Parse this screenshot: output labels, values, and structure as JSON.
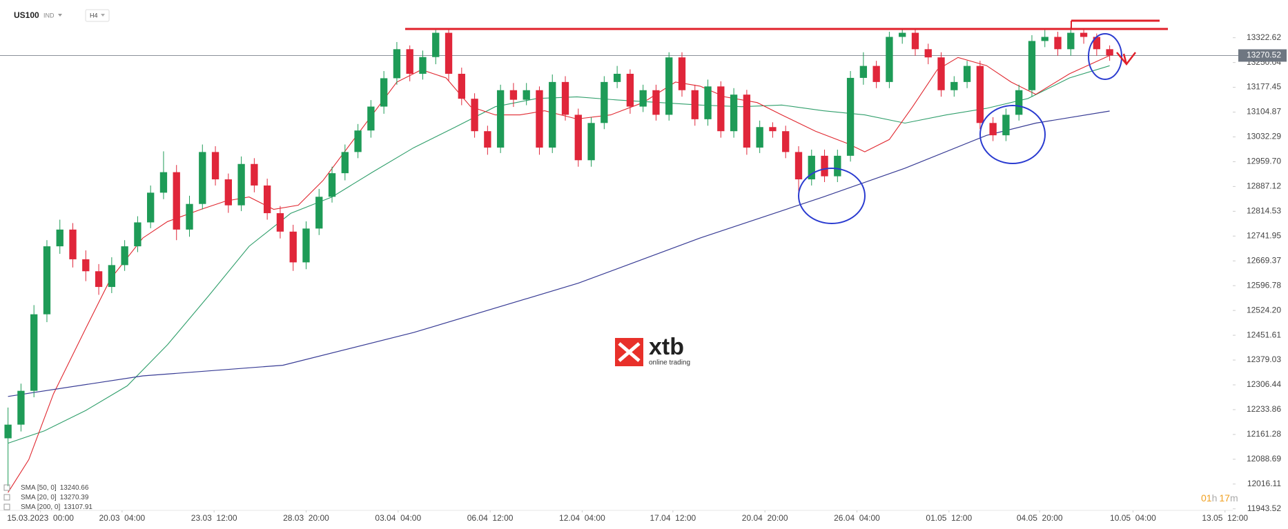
{
  "chart_data": {
    "type": "candlestick",
    "symbol": "US100",
    "market": "IND",
    "timeframe": "H4",
    "up_color": "#1e9b57",
    "down_color": "#e0263a",
    "ohlc": [
      [
        12150,
        12240,
        12010,
        12190
      ],
      [
        12190,
        12310,
        12170,
        12289
      ],
      [
        12289,
        12540,
        12270,
        12513
      ],
      [
        12513,
        12730,
        12490,
        12712
      ],
      [
        12712,
        12790,
        12690,
        12761
      ],
      [
        12761,
        12780,
        12650,
        12674
      ],
      [
        12674,
        12700,
        12610,
        12639
      ],
      [
        12639,
        12660,
        12570,
        12593
      ],
      [
        12593,
        12680,
        12575,
        12657
      ],
      [
        12657,
        12730,
        12640,
        12712
      ],
      [
        12712,
        12800,
        12695,
        12782
      ],
      [
        12782,
        12890,
        12765,
        12869
      ],
      [
        12869,
        12990,
        12850,
        12929
      ],
      [
        12929,
        12950,
        12730,
        12761
      ],
      [
        12761,
        12860,
        12740,
        12836
      ],
      [
        12836,
        13010,
        12820,
        12988
      ],
      [
        12988,
        13005,
        12890,
        12908
      ],
      [
        12908,
        12925,
        12810,
        12832
      ],
      [
        12832,
        12975,
        12815,
        12953
      ],
      [
        12953,
        12970,
        12870,
        12890
      ],
      [
        12890,
        12910,
        12790,
        12809
      ],
      [
        12809,
        12830,
        12735,
        12755
      ],
      [
        12755,
        12775,
        12640,
        12665
      ],
      [
        12665,
        12785,
        12645,
        12764
      ],
      [
        12764,
        12880,
        12745,
        12857
      ],
      [
        12857,
        12945,
        12840,
        12926
      ],
      [
        12926,
        13010,
        12905,
        12988
      ],
      [
        12988,
        13070,
        12970,
        13051
      ],
      [
        13051,
        13140,
        13030,
        13121
      ],
      [
        13121,
        13225,
        13100,
        13204
      ],
      [
        13204,
        13310,
        13185,
        13289
      ],
      [
        13289,
        13300,
        13195,
        13217
      ],
      [
        13217,
        13285,
        13200,
        13266
      ],
      [
        13266,
        13345,
        13245,
        13337
      ],
      [
        13337,
        13345,
        13195,
        13217
      ],
      [
        13217,
        13235,
        13125,
        13144
      ],
      [
        13144,
        13160,
        13030,
        13049
      ],
      [
        13049,
        13065,
        12980,
        13001
      ],
      [
        13001,
        13185,
        12985,
        13169
      ],
      [
        13169,
        13190,
        13120,
        13141
      ],
      [
        13141,
        13190,
        13125,
        13169
      ],
      [
        13169,
        13180,
        12980,
        13001
      ],
      [
        13001,
        13215,
        12985,
        13193
      ],
      [
        13193,
        13210,
        13080,
        13097
      ],
      [
        13097,
        13115,
        12945,
        12964
      ],
      [
        12964,
        13090,
        12945,
        13073
      ],
      [
        13073,
        13210,
        13055,
        13193
      ],
      [
        13193,
        13240,
        13175,
        13217
      ],
      [
        13217,
        13230,
        13100,
        13121
      ],
      [
        13121,
        13185,
        13105,
        13169
      ],
      [
        13169,
        13185,
        13080,
        13097
      ],
      [
        13097,
        13280,
        13080,
        13265
      ],
      [
        13265,
        13280,
        13150,
        13169
      ],
      [
        13169,
        13185,
        13065,
        13084
      ],
      [
        13084,
        13200,
        13065,
        13180
      ],
      [
        13180,
        13195,
        13030,
        13049
      ],
      [
        13049,
        13175,
        13030,
        13156
      ],
      [
        13156,
        13170,
        12980,
        13001
      ],
      [
        13001,
        13080,
        12985,
        13061
      ],
      [
        13061,
        13075,
        13030,
        13049
      ],
      [
        13049,
        13065,
        12970,
        12988
      ],
      [
        12988,
        13005,
        12860,
        12908
      ],
      [
        12908,
        12995,
        12890,
        12977
      ],
      [
        12977,
        12995,
        12900,
        12917
      ],
      [
        12917,
        12995,
        12900,
        12977
      ],
      [
        12977,
        13225,
        12960,
        13205
      ],
      [
        13205,
        13280,
        13185,
        13240
      ],
      [
        13240,
        13255,
        13175,
        13193
      ],
      [
        13193,
        13340,
        13175,
        13325
      ],
      [
        13325,
        13350,
        13305,
        13337
      ],
      [
        13337,
        13350,
        13270,
        13289
      ],
      [
        13289,
        13305,
        13245,
        13265
      ],
      [
        13265,
        13280,
        13150,
        13169
      ],
      [
        13169,
        13210,
        13150,
        13193
      ],
      [
        13193,
        13255,
        13175,
        13240
      ],
      [
        13240,
        13255,
        13055,
        13073
      ],
      [
        13073,
        13090,
        13020,
        13037
      ],
      [
        13037,
        13115,
        13020,
        13097
      ],
      [
        13097,
        13185,
        13080,
        13169
      ],
      [
        13169,
        13330,
        13150,
        13313
      ],
      [
        13313,
        13345,
        13295,
        13325
      ],
      [
        13325,
        13340,
        13270,
        13289
      ],
      [
        13289,
        13355,
        13270,
        13337
      ],
      [
        13337,
        13345,
        13305,
        13325
      ],
      [
        13325,
        13335,
        13270,
        13289
      ],
      [
        13289,
        13300,
        13255,
        13270.52
      ]
    ],
    "overlays": [
      {
        "name": "SMA [50, 0]",
        "last": 13240.66,
        "color": "#2e9e6a",
        "x": [
          0,
          2.8,
          6.0,
          9.2,
          12.3,
          15.5,
          18.6,
          21.8,
          25.0,
          28.1,
          31.3,
          34.5,
          37.6,
          40.8,
          43.9,
          47.1,
          50.3,
          53.4,
          56.6,
          59.7,
          62.9,
          66.1,
          69.2,
          72.4,
          75.5,
          78.7,
          81.9,
          85.0
        ],
        "values": [
          12135.6,
          12171.6,
          12231.6,
          12303.7,
          12423.8,
          12568,
          12712,
          12808.4,
          12856.4,
          12928.5,
          13000.6,
          13060.7,
          13120.7,
          13144.7,
          13149.6,
          13140,
          13132.8,
          13125.6,
          13120.7,
          13125.6,
          13108.7,
          13096.7,
          13072.7,
          13096.7,
          13115.9,
          13144.7,
          13204.8,
          13240.66
        ]
      },
      {
        "name": "SMA [20, 0]",
        "last": 13270.39,
        "color": "#e0262e",
        "x": [
          0,
          1.6,
          3.5,
          6.0,
          7.9,
          10.4,
          12.3,
          14.9,
          16.8,
          18.6,
          20.5,
          22.4,
          24.3,
          26.2,
          28.1,
          30.0,
          31.9,
          33.8,
          35.7,
          37.6,
          39.5,
          41.4,
          43.9,
          46.5,
          49.0,
          51.5,
          53.4,
          55.3,
          57.8,
          59.7,
          62.3,
          64.8,
          66.1,
          68.0,
          69.8,
          71.7,
          73.3,
          75.5,
          77.4,
          79.3,
          81.9,
          85.0
        ],
        "values": [
          11991.3,
          12087.5,
          12279.7,
          12472,
          12616.1,
          12736.3,
          12784.3,
          12820.3,
          12844.4,
          12856.4,
          12820.3,
          12832.4,
          12904.5,
          13000.6,
          13096.7,
          13192.8,
          13228.9,
          13204.8,
          13120.7,
          13096.7,
          13096.7,
          13108.7,
          13084.7,
          13096.7,
          13132.8,
          13192.8,
          13180.8,
          13149.6,
          13132.8,
          13096.7,
          13048.7,
          13012.6,
          12988.6,
          13024.6,
          13120.7,
          13228.9,
          13264.9,
          13240.9,
          13192.8,
          13156.8,
          13216.9,
          13270.39
        ]
      },
      {
        "name": "SMA [200, 0]",
        "last": 13107.91,
        "color": "#363a94",
        "x": [
          0,
          10.4,
          21.2,
          31.3,
          44.0,
          53.4,
          62.9,
          69.2,
          75.5,
          79.3,
          85.0
        ],
        "values": [
          12272.5,
          12332.6,
          12363.8,
          12459.7,
          12604,
          12736.3,
          12856.4,
          12940.5,
          13036.6,
          13072.7,
          13107.91
        ]
      }
    ],
    "xlim": [
      -0.3,
      94.5
    ],
    "xticks": [
      {
        "value": 2.5,
        "label": "15.03.2023  00:00"
      },
      {
        "value": 8.8,
        "label": "20.03  04:00"
      },
      {
        "value": 15.9,
        "label": "23.03  12:00"
      },
      {
        "value": 23.0,
        "label": "28.03  20:00"
      },
      {
        "value": 30.1,
        "label": "03.04  04:00"
      },
      {
        "value": 37.2,
        "label": "06.04  12:00"
      },
      {
        "value": 44.3,
        "label": "12.04  04:00"
      },
      {
        "value": 51.3,
        "label": "17.04  12:00"
      },
      {
        "value": 58.4,
        "label": "20.04  20:00"
      },
      {
        "value": 65.5,
        "label": "26.04  04:00"
      },
      {
        "value": 72.6,
        "label": "01.05  12:00"
      },
      {
        "value": 79.6,
        "label": "04.05  20:00"
      },
      {
        "value": 86.8,
        "label": "10.05  04:00"
      },
      {
        "value": 93.9,
        "label": "13.05  12:00"
      }
    ],
    "ylim": [
      11939,
      13433
    ],
    "yticks": [
      13322.62,
      13250.04,
      13177.45,
      13104.87,
      13032.29,
      {
        "value": 12959.7,
        "label": "12959.70"
      },
      12887.12,
      12814.53,
      12741.95,
      12669.37,
      12596.78,
      {
        "value": 12524.2,
        "label": "12524.20"
      },
      12451.61,
      12379.03,
      12306.44,
      12233.86,
      12161.28,
      12088.69,
      12016.11,
      11943.52
    ],
    "last_price": 13270.52,
    "timer": [
      "01",
      "h",
      "17",
      "m"
    ],
    "watermark": {
      "brand": "xtb",
      "tagline": "online trading"
    }
  }
}
